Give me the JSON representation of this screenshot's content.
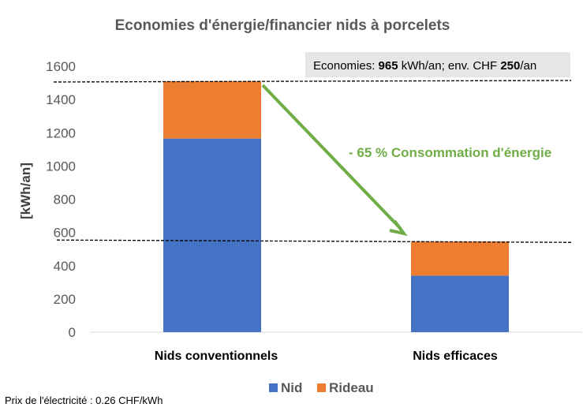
{
  "chart_data": {
    "type": "bar",
    "stacked": true,
    "title": "Economies d'énergie/financier nids à porcelets",
    "xlabel": "",
    "ylabel": "[kWh/an]",
    "ylim": [
      0,
      1600
    ],
    "yticks": [
      0,
      200,
      400,
      600,
      800,
      1000,
      1200,
      1400,
      1600
    ],
    "grid": false,
    "categories": [
      "Nids conventionnels",
      "Nids efficaces"
    ],
    "series": [
      {
        "name": "Nid",
        "color": "#4472C4",
        "values": [
          1165,
          340
        ]
      },
      {
        "name": "Rideau",
        "color": "#ED7D31",
        "values": [
          345,
          205
        ]
      }
    ],
    "legend_position": "bottom",
    "reference_lines": [
      1510,
      545
    ],
    "annotations": {
      "reduction": "- 65 % Consommation d'énergie",
      "reduction_color": "#70AD47",
      "savings_prefix": "Economies: ",
      "savings_kwh": "965",
      "savings_mid": " kWh/an; env. CHF ",
      "savings_chf": "250",
      "savings_suffix": "/an"
    },
    "footnote": "Prix de l'électricité : 0.26 CHF/kWh"
  }
}
